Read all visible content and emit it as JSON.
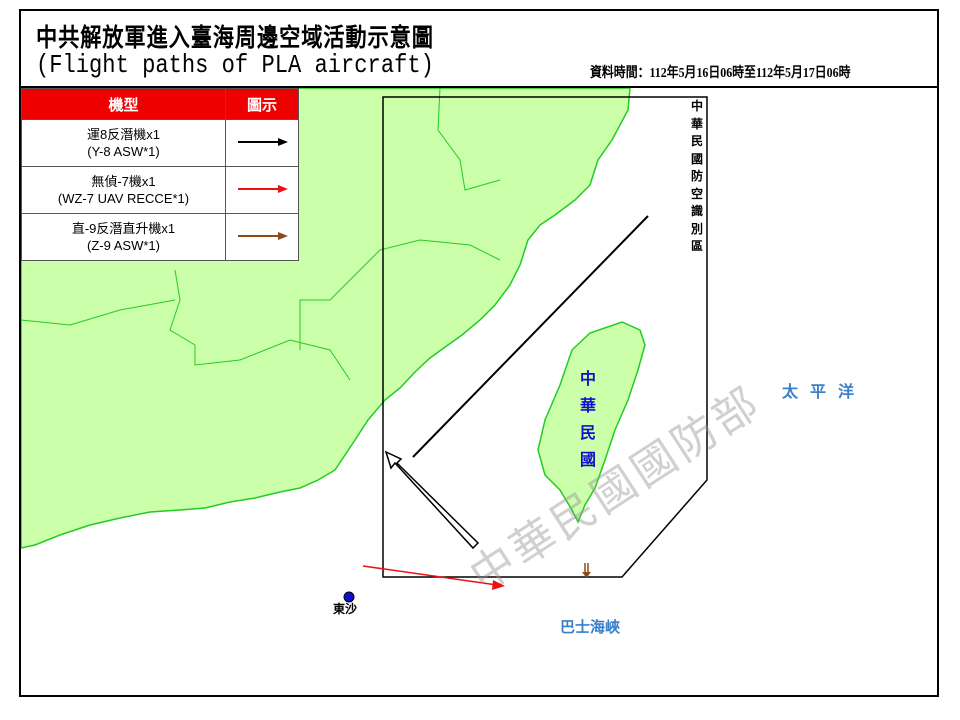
{
  "header": {
    "title": "中共解放軍進入臺海周邊空域活動示意圖",
    "subtitle": "(Flight paths of PLA aircraft)",
    "data_time": "資料時間：112年5月16日06時至112年5月17日06時"
  },
  "legend": {
    "col_type": "機型",
    "col_symbol": "圖示",
    "rows": [
      {
        "zh": "運8反潛機x1",
        "en": "(Y-8 ASW*1)",
        "color": "#000000"
      },
      {
        "zh": "無偵-7機x1",
        "en": "(WZ-7 UAV RECCE*1)",
        "color": "#ee1111"
      },
      {
        "zh": "直-9反潛直升機x1",
        "en": "(Z-9 ASW*1)",
        "color": "#8b4a1a"
      }
    ]
  },
  "map": {
    "adiz_label": "中華民國防空識別區",
    "taiwan_label": "中華民國",
    "pacific_label": "太平洋",
    "bashi_label": "巴士海峽",
    "dongsha_label": "東沙",
    "watermark": "中華民國國防部",
    "land_color": "#ccffaa",
    "coast_color": "#22cc22"
  }
}
